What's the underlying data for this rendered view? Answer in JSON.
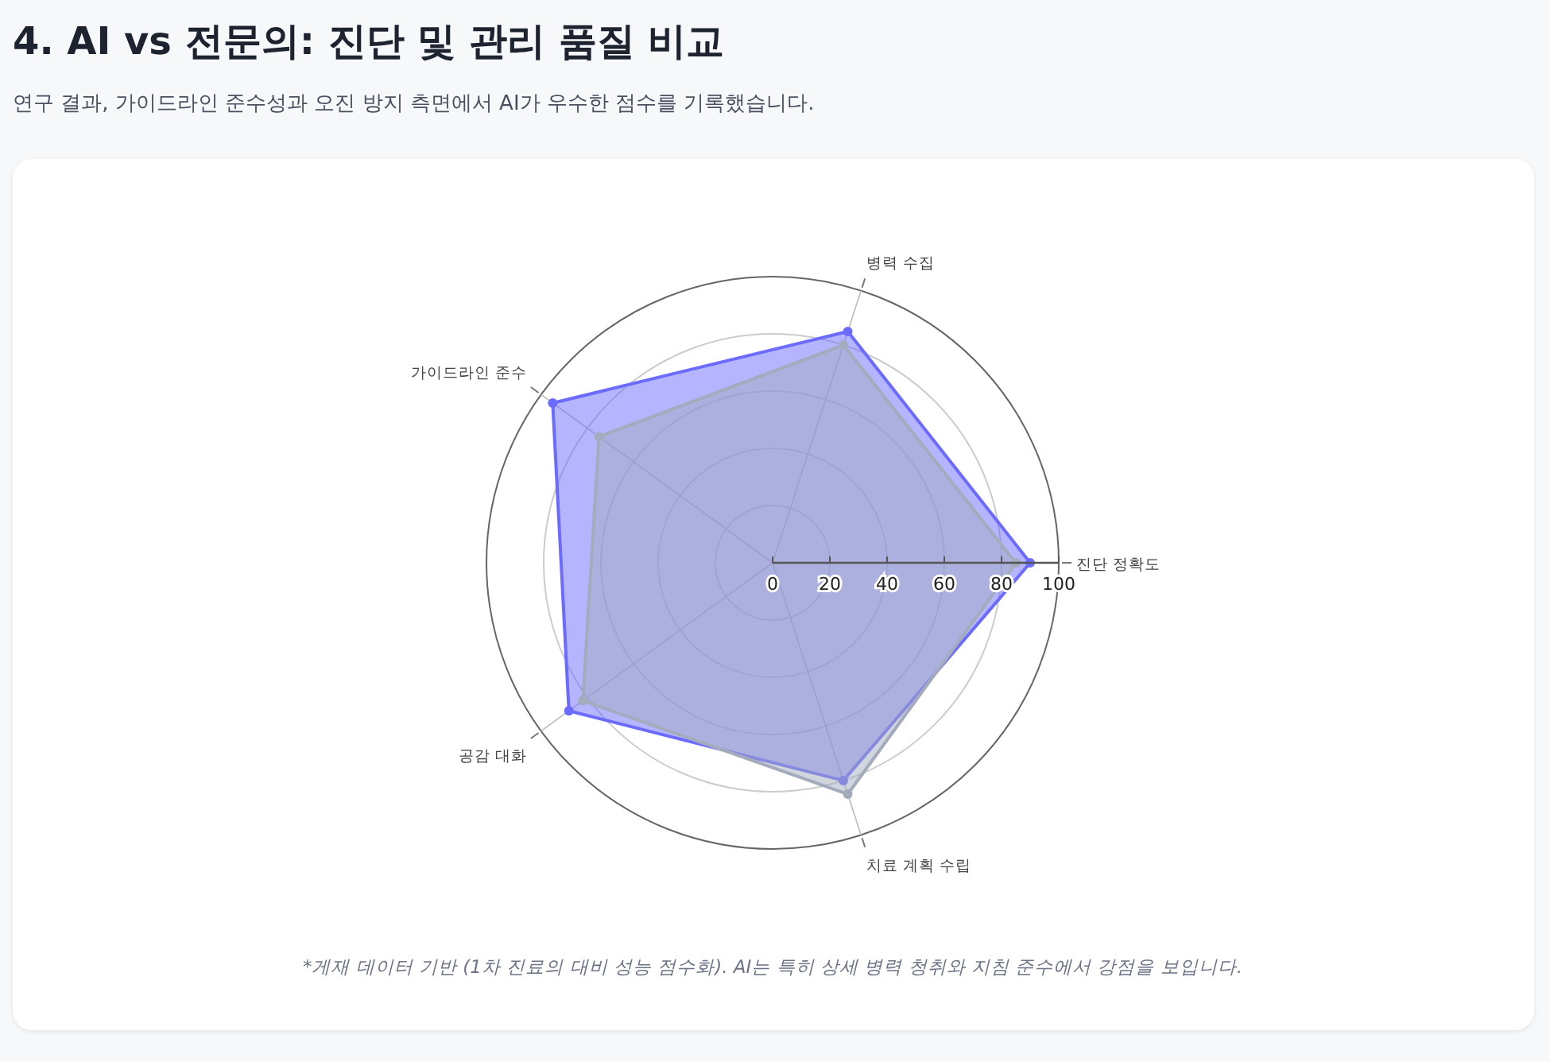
{
  "chart_data": {
    "type": "radar",
    "title": "4. AI vs 전문의: 진단 및 관리 품질 비교",
    "subtitle": "연구 결과, 가이드라인 준수성과 오진 방지 측면에서 AI가 우수한 점수를 기록했습니다.",
    "categories": [
      "병력 수집",
      "진단 정확도",
      "치료 계획 수립",
      "공감 대화",
      "가이드라인 준수"
    ],
    "series": [
      {
        "color": "#6b6bff",
        "values": [
          85,
          90,
          80,
          88,
          95
        ]
      },
      {
        "color": "#a3abbd",
        "values": [
          80,
          85,
          85,
          82,
          75
        ]
      }
    ],
    "ylim": [
      0,
      100
    ],
    "yticks": [
      0,
      20,
      40,
      60,
      80,
      100
    ],
    "grid": true,
    "marker": "circle",
    "annotations": [
      "*게재 데이터 기반 (1차 진료의 대비 성능 점수화). AI는 특히 상세 병력 청취와 지침 준수에서 강점을 보입니다."
    ]
  }
}
